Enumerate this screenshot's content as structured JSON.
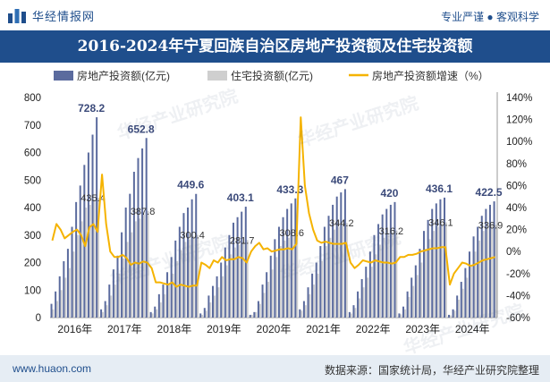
{
  "brand": {
    "name": "华经情报网",
    "slogan": "专业严谨 ● 客观科学"
  },
  "footer": {
    "site": "www.huaon.com",
    "source": "数据来源：国家统计局，华经产业研究院整理"
  },
  "watermarks": [
    "华经产业研究院",
    "华经产业研究院",
    "华经产业研究院",
    "华经产业研究院",
    "华经产业研究院"
  ],
  "colors": {
    "real_estate": "#5b6b9e",
    "residential": "#cfcfcf",
    "growth": "#f5b300",
    "header": "#1f4e8c",
    "footer_bg": "#e6edf4"
  },
  "chart_data": {
    "type": "bar",
    "title": "2016-2024年宁夏回族自治区房地产投资额及住宅投资额",
    "legend": [
      "房地产投资额(亿元)",
      "住宅投资额(亿元)",
      "房地产投资额增速（%）"
    ],
    "x_labels": [
      "2016年",
      "2017年",
      "2018年",
      "2019年",
      "2020年",
      "2021年",
      "2022年",
      "2023年",
      "2024年"
    ],
    "left_axis": {
      "min": 0,
      "max": 800,
      "ticks": [
        "0",
        "100",
        "200",
        "300",
        "400",
        "500",
        "600",
        "700",
        "800"
      ]
    },
    "right_axis": {
      "min": -60,
      "max": 140,
      "ticks": [
        "-60%",
        "-40%",
        "-20%",
        "0%",
        "20%",
        "40%",
        "60%",
        "80%",
        "100%",
        "120%",
        "140%"
      ]
    },
    "years": [
      {
        "year": "2016",
        "months": 11,
        "real_estate": [
          50,
          95,
          150,
          205,
          250,
          330,
          420,
          480,
          555,
          600,
          665,
          728.2
        ],
        "residential": [
          30,
          60,
          100,
          145,
          180,
          240,
          300,
          350,
          400,
          410,
          430,
          435.4
        ],
        "growth": [
          10,
          25,
          20,
          12,
          15,
          18,
          20,
          15,
          5,
          22,
          25,
          18
        ],
        "annual_label": "728.2",
        "residential_label": "435.4"
      },
      {
        "year": "2017",
        "months": 11,
        "real_estate": [
          30,
          60,
          120,
          175,
          225,
          310,
          400,
          450,
          530,
          580,
          615,
          652.8
        ],
        "residential": [
          20,
          45,
          80,
          120,
          160,
          215,
          275,
          310,
          350,
          360,
          375,
          387.8
        ],
        "growth": [
          70,
          25,
          0,
          -5,
          -5,
          -3,
          -6,
          -12,
          -10,
          -11,
          -9,
          -10
        ],
        "annual_label": "652.8",
        "residential_label": "387.8"
      },
      {
        "year": "2018",
        "months": 11,
        "real_estate": [
          20,
          40,
          85,
          120,
          165,
          220,
          280,
          330,
          380,
          400,
          430,
          449.6
        ],
        "residential": [
          15,
          30,
          55,
          85,
          120,
          160,
          205,
          245,
          275,
          285,
          295,
          300.4
        ],
        "growth": [
          -15,
          -28,
          -28,
          -29,
          -30,
          -28,
          -32,
          -30,
          -31,
          -32,
          -31,
          -31
        ],
        "annual_label": "449.6",
        "residential_label": "300.4"
      },
      {
        "year": "2019",
        "months": 11,
        "real_estate": [
          15,
          35,
          80,
          115,
          150,
          200,
          255,
          300,
          345,
          365,
          385,
          403.1
        ],
        "residential": [
          10,
          25,
          55,
          80,
          110,
          150,
          190,
          230,
          255,
          265,
          275,
          281.7
        ],
        "growth": [
          -10,
          -12,
          -15,
          -8,
          -10,
          -5,
          -8,
          -7,
          -7,
          -5,
          -6,
          -10
        ],
        "annual_label": "403.1",
        "residential_label": "281.7"
      },
      {
        "year": "2020",
        "months": 11,
        "real_estate": [
          10,
          20,
          60,
          120,
          165,
          225,
          285,
          330,
          365,
          395,
          415,
          433.3
        ],
        "residential": [
          10,
          20,
          50,
          90,
          130,
          175,
          220,
          260,
          280,
          290,
          300,
          308.6
        ],
        "growth": [
          0,
          5,
          8,
          2,
          3,
          0,
          1,
          2,
          2,
          3,
          2,
          7
        ],
        "annual_label": "433.3",
        "residential_label": "308.6"
      },
      {
        "year": "2021",
        "months": 11,
        "real_estate": [
          30,
          60,
          110,
          160,
          200,
          260,
          330,
          370,
          410,
          440,
          455,
          467
        ],
        "residential": [
          25,
          45,
          85,
          120,
          160,
          205,
          260,
          290,
          320,
          330,
          340,
          344.2
        ],
        "growth": [
          122,
          60,
          35,
          20,
          10,
          8,
          9,
          8,
          7,
          7,
          7,
          8
        ],
        "annual_label": "467",
        "residential_label": "344.2"
      },
      {
        "year": "2022",
        "months": 11,
        "real_estate": [
          20,
          45,
          95,
          140,
          185,
          240,
          300,
          340,
          375,
          395,
          410,
          420
        ],
        "residential": [
          15,
          35,
          70,
          110,
          145,
          185,
          230,
          265,
          290,
          300,
          310,
          316.2
        ],
        "growth": [
          -10,
          -15,
          -12,
          -8,
          -9,
          -10,
          -8,
          -9,
          -10,
          -10,
          -11,
          -10
        ],
        "annual_label": "420",
        "residential_label": "316.2"
      },
      {
        "year": "2023",
        "months": 11,
        "real_estate": [
          15,
          40,
          95,
          145,
          190,
          250,
          315,
          355,
          395,
          415,
          430,
          436.1
        ],
        "residential": [
          12,
          30,
          75,
          115,
          155,
          200,
          250,
          285,
          315,
          330,
          340,
          346.1
        ],
        "growth": [
          -5,
          -5,
          -3,
          -3,
          -2,
          0,
          1,
          2,
          3,
          3,
          4,
          4
        ],
        "annual_label": "436.1",
        "residential_label": "346.1"
      },
      {
        "year": "2024",
        "months": 11,
        "real_estate": [
          10,
          30,
          80,
          130,
          180,
          240,
          295,
          330,
          370,
          395,
          410,
          422.5
        ],
        "residential": [
          8,
          25,
          65,
          105,
          145,
          190,
          240,
          280,
          315,
          330,
          340,
          336.9
        ],
        "growth": [
          -30,
          -20,
          -15,
          -10,
          -11,
          -13,
          -12,
          -10,
          -8,
          -7,
          -6,
          -5
        ],
        "annual_label": "422.5",
        "residential_label": "336.9"
      }
    ]
  }
}
